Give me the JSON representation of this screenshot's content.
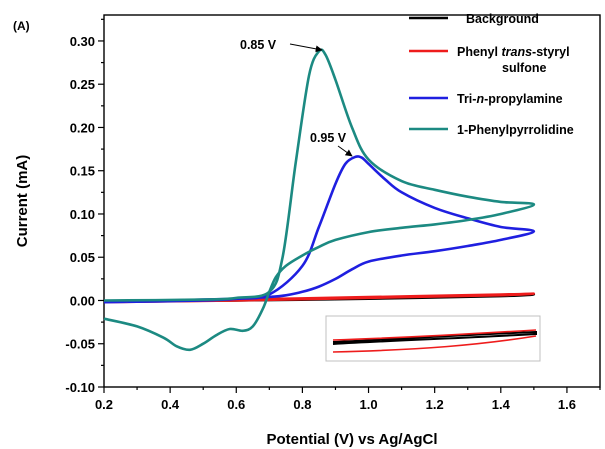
{
  "chart_data": {
    "type": "line",
    "panel_label": "(A)",
    "xlabel": "Potential (V) vs Ag/AgCl",
    "ylabel": "Current (mA)",
    "xlim": [
      0.2,
      1.7
    ],
    "ylim": [
      -0.1,
      0.33
    ],
    "xticks": [
      "0.2",
      "0.4",
      "0.6",
      "0.8",
      "1.0",
      "1.2",
      "1.4",
      "1.6"
    ],
    "yticks": [
      "-0.10",
      "-0.05",
      "0.00",
      "0.05",
      "0.10",
      "0.15",
      "0.20",
      "0.25",
      "0.30"
    ],
    "legend_position": "top-right",
    "grid": false,
    "series": [
      {
        "name": "Background",
        "color": "#000000",
        "x": [
          0.2,
          0.6,
          1.0,
          1.4,
          1.5,
          1.4,
          1.0,
          0.6,
          0.2
        ],
        "y": [
          -0.001,
          0.0,
          0.002,
          0.005,
          0.007,
          0.006,
          0.003,
          0.001,
          -0.001
        ]
      },
      {
        "name_parts": [
          "Phenyl ",
          "trans",
          "-styryl",
          "sulfone"
        ],
        "color": "#ee1c1c",
        "x": [
          0.2,
          0.6,
          1.0,
          1.4,
          1.5,
          1.4,
          1.0,
          0.6,
          0.2
        ],
        "y": [
          -0.002,
          0.0,
          0.003,
          0.006,
          0.008,
          0.007,
          0.004,
          0.001,
          -0.002
        ]
      },
      {
        "name_parts": [
          "Tri-",
          "n",
          "-propylamine"
        ],
        "color": "#1f1fe0",
        "x": [
          0.2,
          0.5,
          0.6,
          0.7,
          0.8,
          0.85,
          0.9,
          0.93,
          0.96,
          0.98,
          1.0,
          1.05,
          1.1,
          1.2,
          1.3,
          1.4,
          1.5,
          1.4,
          1.3,
          1.2,
          1.1,
          1.0,
          0.95,
          0.9,
          0.85,
          0.8,
          0.75,
          0.7,
          0.65,
          0.6,
          0.5,
          0.2
        ],
        "y": [
          -0.002,
          0.0,
          0.002,
          0.007,
          0.04,
          0.085,
          0.135,
          0.158,
          0.166,
          0.165,
          0.158,
          0.14,
          0.125,
          0.107,
          0.095,
          0.085,
          0.08,
          0.07,
          0.063,
          0.057,
          0.052,
          0.045,
          0.036,
          0.025,
          0.016,
          0.01,
          0.006,
          0.004,
          0.003,
          0.002,
          0.001,
          -0.002
        ]
      },
      {
        "name": "1-Phenylpyrrolidine",
        "color": "#1c8a82",
        "x": [
          0.2,
          0.5,
          0.6,
          0.7,
          0.74,
          0.78,
          0.82,
          0.85,
          0.87,
          0.9,
          0.95,
          1.0,
          1.1,
          1.2,
          1.3,
          1.4,
          1.5,
          1.4,
          1.3,
          1.2,
          1.1,
          1.0,
          0.9,
          0.85,
          0.8,
          0.75,
          0.72,
          0.7,
          0.68,
          0.65,
          0.62,
          0.58,
          0.54,
          0.5,
          0.46,
          0.42,
          0.38,
          0.3,
          0.2
        ],
        "y": [
          0.0,
          0.001,
          0.003,
          0.01,
          0.05,
          0.16,
          0.26,
          0.288,
          0.284,
          0.255,
          0.2,
          0.163,
          0.138,
          0.128,
          0.12,
          0.114,
          0.111,
          0.1,
          0.093,
          0.088,
          0.084,
          0.079,
          0.07,
          0.062,
          0.052,
          0.04,
          0.027,
          0.01,
          -0.01,
          -0.03,
          -0.035,
          -0.033,
          -0.04,
          -0.05,
          -0.057,
          -0.053,
          -0.043,
          -0.03,
          -0.021
        ]
      }
    ],
    "annotations": [
      {
        "text": "0.85 V",
        "points_to": [
          0.86,
          0.289
        ]
      },
      {
        "text": "0.95 V",
        "points_to": [
          0.965,
          0.168
        ]
      }
    ],
    "inset": {
      "border_color": "#c0c0c0"
    }
  }
}
